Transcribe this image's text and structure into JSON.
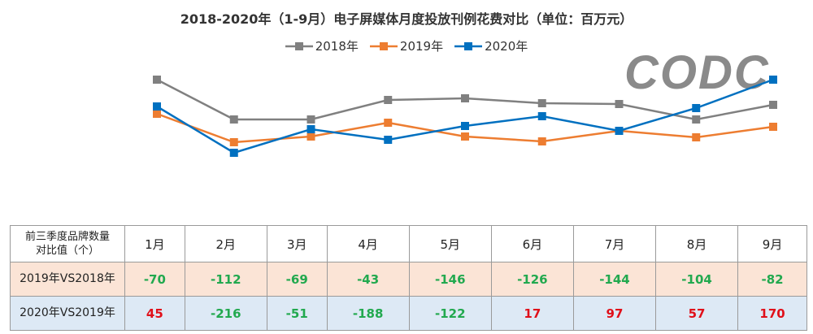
{
  "chart_data": {
    "type": "line",
    "title": "2018-2020年（1-9月）电子屏媒体月度投放刊例花费对比（单位：百万元）",
    "categories": [
      "1月",
      "2月",
      "3月",
      "4月",
      "5月",
      "6月",
      "7月",
      "8月",
      "9月"
    ],
    "series": [
      {
        "name": "2018年",
        "color": "#808080",
        "values": [
          102,
          53,
          53,
          77,
          79,
          73,
          72,
          53,
          71
        ]
      },
      {
        "name": "2019年",
        "color": "#ed7d31",
        "values": [
          60,
          25,
          32,
          49,
          32,
          26,
          39,
          31,
          44
        ]
      },
      {
        "name": "2020年",
        "color": "#0070c0",
        "values": [
          69,
          12,
          41,
          28,
          45,
          57,
          39,
          67,
          102
        ]
      }
    ],
    "ylim": [
      0,
      110
    ],
    "grid": false,
    "axes_visible": false,
    "legend": "top-center",
    "marker": "square"
  },
  "logo": "CODC",
  "table": {
    "corner_line1": "前三季度品牌数量",
    "corner_line2": "对比值（个）",
    "months": [
      "1月",
      "2月",
      "3月",
      "4月",
      "5月",
      "6月",
      "7月",
      "8月",
      "9月"
    ],
    "rows": [
      {
        "label": "2019年VS2018年",
        "values": [
          "-70",
          "-112",
          "-69",
          "-43",
          "-146",
          "-126",
          "-144",
          "-104",
          "-82"
        ]
      },
      {
        "label": "2020年VS2019年",
        "values": [
          "45",
          "-216",
          "-51",
          "-188",
          "-122",
          "17",
          "97",
          "57",
          "170"
        ]
      }
    ],
    "colors": {
      "negative": "#22a94f",
      "positive": "#e0101a"
    }
  }
}
